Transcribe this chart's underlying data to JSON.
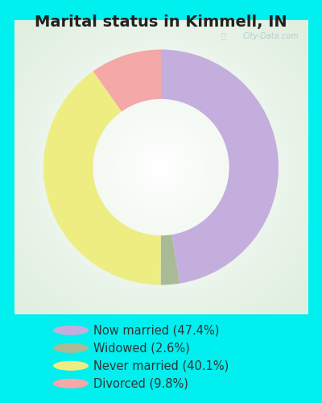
{
  "title": "Marital status in Kimmell, IN",
  "slices": [
    47.4,
    2.6,
    40.1,
    9.8
  ],
  "labels": [
    "Now married (47.4%)",
    "Widowed (2.6%)",
    "Never married (40.1%)",
    "Divorced (9.8%)"
  ],
  "colors": [
    "#c4aedd",
    "#aaba96",
    "#eeed82",
    "#f4a8a8"
  ],
  "legend_colors": [
    "#c4aedd",
    "#aaba96",
    "#eeed82",
    "#f4a8a8"
  ],
  "bg_color": "#00efef",
  "panel_bg": "#d8ede0",
  "title_fontsize": 14,
  "title_color": "#222222",
  "startangle": 90,
  "donut_width": 0.42,
  "legend_fontsize": 10.5,
  "legend_text_color": "#333333",
  "watermark_text": "City-Data.com",
  "watermark_color": "#b0c8cc",
  "watermark_fontsize": 7
}
